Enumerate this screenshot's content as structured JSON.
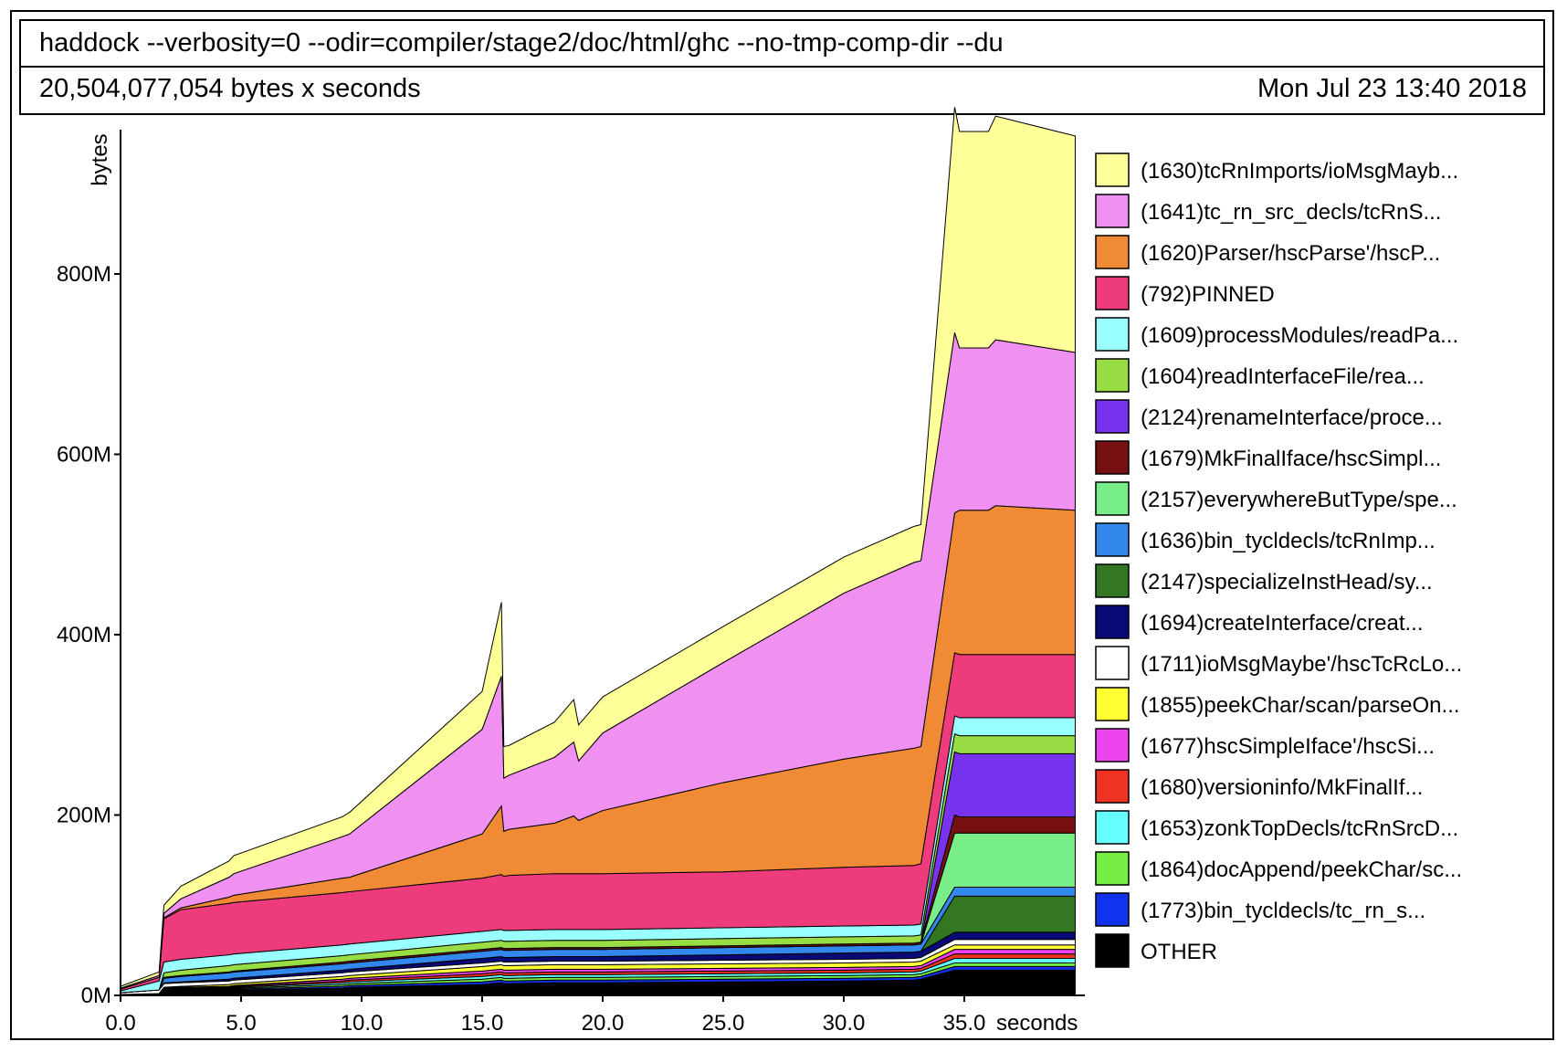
{
  "header": {
    "title": "haddock --verbosity=0 --odir=compiler/stage2/doc/html/ghc --no-tmp-comp-dir --du",
    "total": "20,504,077,054 bytes x seconds",
    "date": "Mon Jul 23 13:40 2018"
  },
  "chart_data": {
    "type": "area",
    "stacked": true,
    "xlabel": "seconds",
    "ylabel": "bytes",
    "xlim": [
      0,
      40
    ],
    "ylim": [
      0,
      960
    ],
    "x_ticks": [
      "0.0",
      "5.0",
      "10.0",
      "15.0",
      "20.0",
      "25.0",
      "30.0",
      "35.0"
    ],
    "x_tick_values": [
      0,
      5,
      10,
      15,
      20,
      25,
      30,
      35
    ],
    "y_ticks": [
      "0M",
      "200M",
      "400M",
      "600M",
      "800M"
    ],
    "y_tick_values": [
      0,
      200,
      400,
      600,
      800
    ],
    "legend_position": "right",
    "x": [
      0.0,
      1.6,
      1.8,
      2.5,
      4.5,
      4.7,
      9.2,
      9.5,
      15.0,
      15.8,
      15.9,
      16.1,
      18.0,
      18.8,
      19.0,
      20.0,
      25.0,
      30.0,
      32.9,
      33.2,
      34.6,
      34.8,
      36.0,
      36.3,
      39.6
    ],
    "series": [
      {
        "name": "(1630)tcRnImports/ioMsgMayb...",
        "color": "#ffff99",
        "values": [
          2,
          4,
          9,
          14,
          18,
          20,
          22,
          24,
          42,
          82,
          35,
          33,
          39,
          47,
          40,
          40,
          40,
          40,
          40,
          40,
          250,
          240,
          240,
          248,
          240
        ]
      },
      {
        "name": "(1641)tc_rn_src_decls/tcRnS...",
        "color": "#f090f0",
        "values": [
          1,
          2,
          5,
          10,
          22,
          24,
          46,
          48,
          116,
          144,
          59,
          60,
          73,
          82,
          66,
          86,
          133,
          184,
          206,
          206,
          200,
          180,
          180,
          184,
          175
        ]
      },
      {
        "name": "(1620)Parser/hscParse'/hscP...",
        "color": "#f08a35",
        "values": [
          0,
          0,
          1,
          2,
          7,
          8,
          16,
          16,
          49,
          76,
          50,
          51,
          56,
          64,
          59,
          70,
          99,
          120,
          130,
          130,
          155,
          160,
          160,
          165,
          160
        ]
      },
      {
        "name": "(792)PINNED",
        "color": "#ee3b7c",
        "values": [
          2,
          4,
          48,
          55,
          57,
          57,
          58,
          58,
          59,
          61,
          60,
          61,
          62,
          62,
          62,
          62,
          62,
          65,
          66,
          67,
          70,
          70,
          70,
          70,
          70
        ]
      },
      {
        "name": "(1609)processModules/readPa...",
        "color": "#99ffff",
        "values": [
          2,
          10,
          12,
          12,
          12,
          12,
          12,
          12,
          12,
          12,
          12,
          12,
          12,
          12,
          12,
          12,
          12,
          12,
          12,
          12,
          20,
          20,
          20,
          20,
          20
        ]
      },
      {
        "name": "(1604)readInterfaceFile/rea...",
        "color": "#99dd44",
        "values": [
          0,
          0,
          5,
          6,
          7,
          7,
          7,
          7,
          8,
          8,
          8,
          8,
          8,
          8,
          8,
          8,
          8,
          8,
          8,
          8,
          20,
          20,
          20,
          20,
          20
        ]
      },
      {
        "name": "(2124)renameInterface/proce...",
        "color": "#7733ee",
        "values": [
          0,
          0,
          0,
          0,
          0,
          0,
          0,
          0,
          0,
          0,
          0,
          0,
          0,
          0,
          0,
          0,
          0,
          0,
          0,
          0,
          70,
          70,
          70,
          70,
          70
        ]
      },
      {
        "name": "(1679)MkFinalIface/hscSimpl...",
        "color": "#771111",
        "values": [
          0,
          0,
          1,
          1,
          1,
          1,
          2,
          2,
          2,
          2,
          2,
          2,
          2,
          2,
          2,
          2,
          2,
          2,
          2,
          2,
          20,
          18,
          18,
          18,
          18
        ]
      },
      {
        "name": "(2157)everywhereButType/spe...",
        "color": "#77ee88",
        "values": [
          0,
          0,
          0,
          0,
          0,
          0,
          0,
          0,
          0,
          0,
          0,
          0,
          0,
          0,
          0,
          0,
          0,
          0,
          0,
          0,
          60,
          60,
          60,
          60,
          60
        ]
      },
      {
        "name": "(1636)bin_tycldecls/tcRnImp...",
        "color": "#3388ee",
        "values": [
          0,
          0,
          5,
          6,
          7,
          7,
          7,
          7,
          8,
          8,
          8,
          8,
          8,
          8,
          8,
          8,
          8,
          8,
          8,
          8,
          10,
          10,
          10,
          10,
          10
        ]
      },
      {
        "name": "(2147)specializeInstHead/sy...",
        "color": "#337722",
        "values": [
          0,
          0,
          0,
          0,
          0,
          0,
          0,
          0,
          0,
          0,
          0,
          0,
          0,
          0,
          0,
          0,
          0,
          0,
          0,
          0,
          40,
          40,
          40,
          40,
          40
        ]
      },
      {
        "name": "(1694)createInterface/creat...",
        "color": "#0a0a77",
        "values": [
          0,
          0,
          1,
          1,
          2,
          2,
          3,
          3,
          5,
          5,
          5,
          5,
          5,
          5,
          5,
          5,
          6,
          7,
          7,
          7,
          8,
          8,
          8,
          8,
          8
        ]
      },
      {
        "name": "(1711)ioMsgMaybe'/hscTcRcLo...",
        "color": "#ffffff",
        "values": [
          2,
          4,
          4,
          4,
          4,
          4,
          4,
          4,
          4,
          4,
          4,
          4,
          4,
          4,
          4,
          4,
          4,
          4,
          4,
          4,
          6,
          6,
          6,
          6,
          6
        ]
      },
      {
        "name": "(1855)peekChar/scan/parseOn...",
        "color": "#ffff33",
        "values": [
          0,
          0,
          1,
          1,
          2,
          2,
          3,
          3,
          5,
          5,
          5,
          5,
          5,
          5,
          5,
          5,
          5,
          5,
          5,
          5,
          5,
          5,
          5,
          5,
          5
        ]
      },
      {
        "name": "(1677)hscSimpleIface'/hscSi...",
        "color": "#ee44ee",
        "values": [
          0,
          0,
          1,
          1,
          1,
          1,
          2,
          2,
          3,
          3,
          3,
          3,
          3,
          3,
          3,
          3,
          3,
          3,
          3,
          3,
          5,
          5,
          5,
          5,
          5
        ]
      },
      {
        "name": "(1680)versioninfo/MkFinalIf...",
        "color": "#ee3322",
        "values": [
          0,
          0,
          1,
          1,
          1,
          1,
          2,
          2,
          3,
          3,
          3,
          3,
          3,
          3,
          3,
          3,
          3,
          3,
          3,
          3,
          5,
          5,
          5,
          5,
          5
        ]
      },
      {
        "name": "(1653)zonkTopDecls/tcRnSrcD...",
        "color": "#66ffff",
        "values": [
          0,
          0,
          1,
          1,
          1,
          1,
          2,
          2,
          3,
          3,
          3,
          3,
          3,
          3,
          3,
          3,
          3,
          3,
          3,
          3,
          5,
          5,
          5,
          5,
          5
        ]
      },
      {
        "name": "(1864)docAppend/peekChar/sc...",
        "color": "#77ee44",
        "values": [
          0,
          0,
          1,
          1,
          1,
          1,
          2,
          2,
          3,
          3,
          3,
          3,
          3,
          3,
          3,
          3,
          3,
          3,
          3,
          3,
          4,
          4,
          4,
          4,
          4
        ]
      },
      {
        "name": "(1773)bin_tycldecls/tc_rn_s...",
        "color": "#1133ee",
        "values": [
          0,
          0,
          1,
          1,
          1,
          1,
          2,
          2,
          3,
          3,
          3,
          3,
          3,
          3,
          3,
          3,
          3,
          3,
          3,
          3,
          4,
          4,
          4,
          4,
          4
        ]
      },
      {
        "name": "OTHER",
        "color": "#000000",
        "values": [
          1,
          2,
          3,
          4,
          5,
          6,
          8,
          9,
          12,
          14,
          13,
          13,
          14,
          14,
          14,
          14,
          15,
          16,
          17,
          18,
          28,
          28,
          28,
          28,
          28
        ]
      }
    ]
  }
}
